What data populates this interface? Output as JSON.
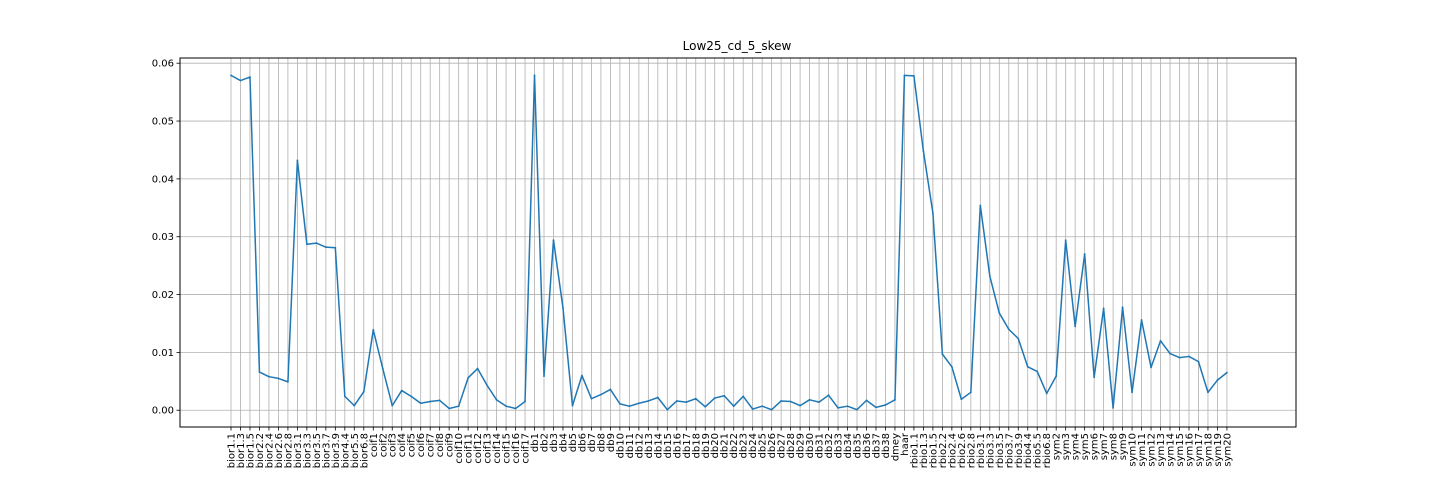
{
  "chart_data": {
    "type": "line",
    "title": "Low25_cd_5_skew",
    "xlabel": "",
    "ylabel": "",
    "ylim": [
      -0.0029,
      0.0609
    ],
    "yticks": [
      0.0,
      0.01,
      0.02,
      0.03,
      0.04,
      0.05,
      0.06
    ],
    "ytick_labels": [
      "0.00",
      "0.01",
      "0.02",
      "0.03",
      "0.04",
      "0.05",
      "0.06"
    ],
    "grid": true,
    "line_color": "#1f77b4",
    "categories": [
      "bior1.1",
      "bior1.3",
      "bior1.5",
      "bior2.2",
      "bior2.4",
      "bior2.6",
      "bior2.8",
      "bior3.1",
      "bior3.3",
      "bior3.5",
      "bior3.7",
      "bior3.9",
      "bior4.4",
      "bior5.5",
      "bior6.8",
      "coif1",
      "coif2",
      "coif3",
      "coif4",
      "coif5",
      "coif6",
      "coif7",
      "coif8",
      "coif9",
      "coif10",
      "coif11",
      "coif12",
      "coif13",
      "coif14",
      "coif15",
      "coif16",
      "coif17",
      "db1",
      "db2",
      "db3",
      "db4",
      "db5",
      "db6",
      "db7",
      "db8",
      "db9",
      "db10",
      "db11",
      "db12",
      "db13",
      "db14",
      "db15",
      "db16",
      "db17",
      "db18",
      "db19",
      "db20",
      "db21",
      "db22",
      "db23",
      "db24",
      "db25",
      "db26",
      "db27",
      "db28",
      "db29",
      "db30",
      "db31",
      "db32",
      "db33",
      "db34",
      "db35",
      "db36",
      "db37",
      "db38",
      "dmey",
      "haar",
      "rbio1.1",
      "rbio1.3",
      "rbio1.5",
      "rbio2.2",
      "rbio2.4",
      "rbio2.6",
      "rbio2.8",
      "rbio3.1",
      "rbio3.3",
      "rbio3.5",
      "rbio3.7",
      "rbio3.9",
      "rbio4.4",
      "rbio5.5",
      "rbio6.8",
      "sym2",
      "sym3",
      "sym4",
      "sym5",
      "sym6",
      "sym7",
      "sym8",
      "sym9",
      "sym10",
      "sym11",
      "sym12",
      "sym13",
      "sym14",
      "sym15",
      "sym16",
      "sym17",
      "sym18",
      "sym19",
      "sym20"
    ],
    "series": [
      {
        "values": [
          0.0579,
          0.057,
          0.0576,
          0.0066,
          0.0058,
          0.0055,
          0.0049,
          0.0432,
          0.0287,
          0.0289,
          0.0282,
          0.0281,
          0.0024,
          0.0008,
          0.0032,
          0.0139,
          0.0072,
          0.0008,
          0.0034,
          0.0024,
          0.0012,
          0.0015,
          0.0017,
          0.0003,
          0.0007,
          0.0056,
          0.0072,
          0.0043,
          0.0018,
          0.0007,
          0.0003,
          0.0015,
          0.0579,
          0.0059,
          0.0294,
          0.0177,
          0.0008,
          0.006,
          0.002,
          0.0027,
          0.0036,
          0.0011,
          0.0007,
          0.0012,
          0.0016,
          0.0022,
          0.0001,
          0.0016,
          0.0014,
          0.002,
          0.0006,
          0.0021,
          0.0025,
          0.0007,
          0.0024,
          0.0002,
          0.0007,
          0.0001,
          0.0016,
          0.0015,
          0.0008,
          0.0018,
          0.0014,
          0.0026,
          0.0004,
          0.0007,
          0.0001,
          0.0017,
          0.0005,
          0.0009,
          0.0018,
          0.0579,
          0.0578,
          0.0448,
          0.0341,
          0.0097,
          0.0075,
          0.0019,
          0.0031,
          0.0354,
          0.0232,
          0.0168,
          0.014,
          0.0124,
          0.0075,
          0.0067,
          0.0029,
          0.0059,
          0.0294,
          0.0145,
          0.027,
          0.0057,
          0.0176,
          0.0004,
          0.0178,
          0.0031,
          0.0156,
          0.0074,
          0.012,
          0.0098,
          0.0091,
          0.0093,
          0.0084,
          0.0031,
          0.0052,
          0.0065
        ]
      }
    ]
  }
}
